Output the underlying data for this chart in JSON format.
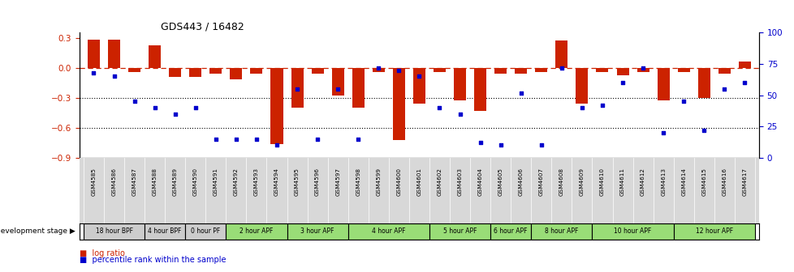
{
  "title": "GDS443 / 16482",
  "samples": [
    "GSM4585",
    "GSM4586",
    "GSM4587",
    "GSM4588",
    "GSM4589",
    "GSM4590",
    "GSM4591",
    "GSM4592",
    "GSM4593",
    "GSM4594",
    "GSM4595",
    "GSM4596",
    "GSM4597",
    "GSM4598",
    "GSM4599",
    "GSM4600",
    "GSM4601",
    "GSM4602",
    "GSM4603",
    "GSM4604",
    "GSM4605",
    "GSM4606",
    "GSM4607",
    "GSM4608",
    "GSM4609",
    "GSM4610",
    "GSM4611",
    "GSM4612",
    "GSM4613",
    "GSM4614",
    "GSM4615",
    "GSM4616",
    "GSM4617"
  ],
  "log_ratio": [
    0.28,
    0.28,
    -0.04,
    0.22,
    -0.09,
    -0.09,
    -0.06,
    -0.12,
    -0.06,
    -0.76,
    -0.4,
    -0.06,
    -0.28,
    -0.4,
    -0.04,
    -0.72,
    -0.36,
    -0.04,
    -0.33,
    -0.43,
    -0.06,
    -0.06,
    -0.04,
    0.27,
    -0.36,
    -0.04,
    -0.08,
    -0.04,
    -0.33,
    -0.04,
    -0.3,
    -0.06,
    0.06
  ],
  "percentile": [
    68,
    65,
    45,
    40,
    35,
    40,
    15,
    15,
    15,
    10,
    55,
    15,
    55,
    15,
    72,
    70,
    65,
    40,
    35,
    12,
    10,
    52,
    10,
    72,
    40,
    42,
    60,
    72,
    20,
    45,
    22,
    55,
    60
  ],
  "bar_color": "#cc2200",
  "point_color": "#0000cc",
  "dashed_line_color": "#cc2200",
  "dotted_line_color": "#000000",
  "ylim": [
    -0.9,
    0.35
  ],
  "y2lim": [
    0,
    100
  ],
  "dotted_lines": [
    -0.3,
    -0.6
  ],
  "groups": [
    {
      "label": "18 hour BPF",
      "start": 0,
      "end": 3,
      "color": "#cccccc"
    },
    {
      "label": "4 hour BPF",
      "start": 3,
      "end": 5,
      "color": "#cccccc"
    },
    {
      "label": "0 hour PF",
      "start": 5,
      "end": 7,
      "color": "#cccccc"
    },
    {
      "label": "2 hour APF",
      "start": 7,
      "end": 10,
      "color": "#99dd77"
    },
    {
      "label": "3 hour APF",
      "start": 10,
      "end": 13,
      "color": "#99dd77"
    },
    {
      "label": "4 hour APF",
      "start": 13,
      "end": 17,
      "color": "#99dd77"
    },
    {
      "label": "5 hour APF",
      "start": 17,
      "end": 20,
      "color": "#99dd77"
    },
    {
      "label": "6 hour APF",
      "start": 20,
      "end": 22,
      "color": "#99dd77"
    },
    {
      "label": "8 hour APF",
      "start": 22,
      "end": 25,
      "color": "#99dd77"
    },
    {
      "label": "10 hour APF",
      "start": 25,
      "end": 29,
      "color": "#99dd77"
    },
    {
      "label": "12 hour APF",
      "start": 29,
      "end": 33,
      "color": "#99dd77"
    }
  ],
  "yticks_left": [
    0.3,
    0.0,
    -0.3,
    -0.6,
    -0.9
  ],
  "yticks_right": [
    100,
    75,
    50,
    25,
    0
  ],
  "dev_stage_label": "development stage",
  "legend_items": [
    {
      "color": "#cc2200",
      "label": "log ratio"
    },
    {
      "color": "#0000cc",
      "label": "percentile rank within the sample"
    }
  ],
  "fig_width": 9.79,
  "fig_height": 3.36,
  "dpi": 100
}
